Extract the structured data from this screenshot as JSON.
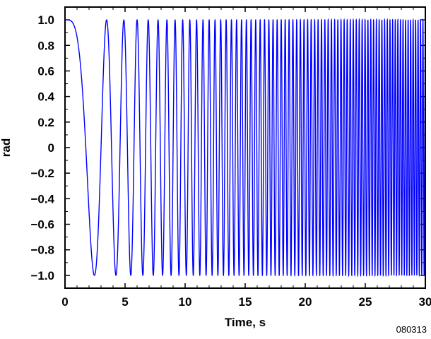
{
  "chart_data": {
    "type": "line",
    "title": "",
    "xlabel": "Time, s",
    "ylabel": "rad",
    "xlim": [
      0,
      30
    ],
    "ylim": [
      -1.1,
      1.1
    ],
    "x_ticks": [
      0,
      5,
      10,
      15,
      20,
      25,
      30
    ],
    "x_tick_labels": [
      "0",
      "5",
      "10",
      "15",
      "20",
      "25",
      "30"
    ],
    "y_ticks": [
      1.0,
      0.8,
      0.6,
      0.4,
      0.2,
      0,
      -0.2,
      -0.4,
      -0.6,
      -0.8,
      -1.0
    ],
    "y_tick_labels": [
      "1.0",
      "0.8",
      "0.6",
      "0.4",
      "0.2",
      "0",
      "−0.2",
      "−0.4",
      "−0.6",
      "−0.8",
      "−1.0"
    ],
    "grid": false,
    "legend": "none",
    "series": [
      {
        "function": "cos(pi/6 * t^2)",
        "t_range": [
          0,
          30
        ],
        "peaks_t": [
          0,
          3.46,
          4.9,
          6.0,
          6.93,
          7.75
        ],
        "troughs_t": [
          2.45,
          4.24,
          5.48,
          6.48,
          7.35
        ],
        "amplitude": 1.0,
        "color": "#0000ff"
      }
    ],
    "figure_id": "080313"
  }
}
